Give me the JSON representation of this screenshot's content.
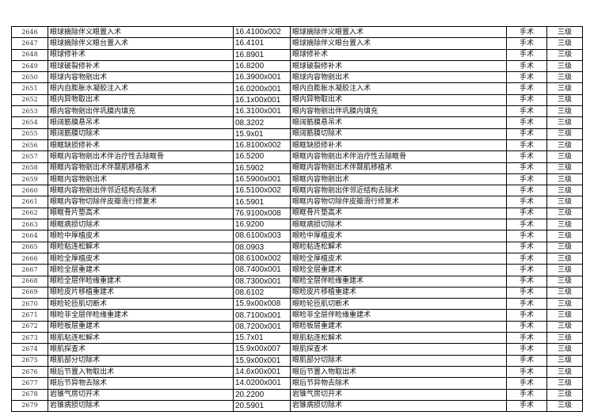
{
  "rows": [
    [
      "2646",
      "眼球摘除伴义眼置入术",
      "16.4100x002",
      "眼球摘除伴义眼置入术",
      "手术",
      "三级"
    ],
    [
      "2647",
      "眼球摘除伴义眼台置入术",
      "16.4101",
      "眼球摘除伴义眼台置入术",
      "手术",
      "三级"
    ],
    [
      "2648",
      "眼球修补术",
      "16.8901",
      "眼球修补术",
      "手术",
      "三级"
    ],
    [
      "2649",
      "眼球破裂修补术",
      "16.8200",
      "眼球破裂修补术",
      "手术",
      "三级"
    ],
    [
      "2650",
      "眼球内容物剜出术",
      "16.3900x001",
      "眼球内容物剜出术",
      "手术",
      "三级"
    ],
    [
      "2651",
      "眼内自膨胀水凝胶注入术",
      "16.0200x001",
      "眼内自膨胀水凝胶注入术",
      "手术",
      "三级"
    ],
    [
      "2652",
      "眼内异物取出术",
      "16.1x00x001",
      "眼内异物取出术",
      "手术",
      "三级"
    ],
    [
      "2653",
      "眼内容物剜出伴巩膜内填充",
      "16.3100x001",
      "眼内容物剜出伴巩膜内填充",
      "手术",
      "三级"
    ],
    [
      "2654",
      "眼阔筋膜悬吊术",
      "08.3202",
      "眼阔筋膜悬吊术",
      "手术",
      "三级"
    ],
    [
      "2655",
      "眼阔筋膜切除术",
      "15.9x01",
      "眼阔筋膜切除术",
      "手术",
      "三级"
    ],
    [
      "2656",
      "眼眶缺损修补术",
      "16.8100x002",
      "眼眶缺损修补术",
      "手术",
      "三级"
    ],
    [
      "2657",
      "眼眶内容物剜出术伴治疗性去除眶骨",
      "16.5200",
      "眼眶内容物剜出术伴治疗性去除眶骨",
      "手术",
      "三级"
    ],
    [
      "2658",
      "眼眶内容物剜出术伴颞肌移植术",
      "16.5902",
      "眼眶内容物剜出术伴颞肌移植术",
      "手术",
      "三级"
    ],
    [
      "2659",
      "眼眶内容物剜出术",
      "16.5900x001",
      "眼眶内容物剜出术",
      "手术",
      "三级"
    ],
    [
      "2660",
      "眼眶内容物剜出伴邻近结构去除术",
      "16.5100x002",
      "眼眶内容物剜出伴邻近结构去除术",
      "手术",
      "三级"
    ],
    [
      "2661",
      "眼眶内容物切除伴皮瓣滑行修复术",
      "16.5901",
      "眼眶内容物切除伴皮瓣滑行修复术",
      "手术",
      "三级"
    ],
    [
      "2662",
      "眼眶骨片垫高术",
      "76.9100x008",
      "眼眶骨片垫高术",
      "手术",
      "三级"
    ],
    [
      "2663",
      "眼眶病损切除术",
      "16.9200",
      "眼眶病损切除术",
      "手术",
      "三级"
    ],
    [
      "2664",
      "眼睑中厚植皮术",
      "08.6100x003",
      "眼睑中厚植皮术",
      "手术",
      "三级"
    ],
    [
      "2665",
      "眼睑粘连松解术",
      "08.0903",
      "眼睑粘连松解术",
      "手术",
      "三级"
    ],
    [
      "2666",
      "眼睑全厚植皮术",
      "08.6100x002",
      "眼睑全厚植皮术",
      "手术",
      "三级"
    ],
    [
      "2667",
      "眼睑全层重建术",
      "08.7400x001",
      "眼睑全层重建术",
      "手术",
      "三级"
    ],
    [
      "2668",
      "眼睑全层伴睑缘重建术",
      "08.7300x001",
      "眼睑全层伴睑缘重建术",
      "手术",
      "三级"
    ],
    [
      "2669",
      "眼睑皮片移植重建术",
      "08.6102",
      "眼睑皮片移植重建术",
      "手术",
      "三级"
    ],
    [
      "2670",
      "眼睑轮匝肌切断术",
      "15.9x00x008",
      "眼睑轮匝肌切断术",
      "手术",
      "三级"
    ],
    [
      "2671",
      "眼睑非全层伴睑缘重建术",
      "08.7100x001",
      "眼睑非全层伴睑缘重建术",
      "手术",
      "三级"
    ],
    [
      "2672",
      "眼睑板层重建术",
      "08.7200x001",
      "眼睑板层重建术",
      "手术",
      "三级"
    ],
    [
      "2673",
      "眼肌粘连松解术",
      "15.7x01",
      "眼肌粘连松解术",
      "手术",
      "三级"
    ],
    [
      "2674",
      "眼肌探查术",
      "15.9x00x007",
      "眼肌探查术",
      "手术",
      "三级"
    ],
    [
      "2675",
      "眼肌部分切除术",
      "15.9x00x001",
      "眼肌部分切除术",
      "手术",
      "三级"
    ],
    [
      "2676",
      "眼后节置入物取出术",
      "14.6x00x001",
      "眼后节置入物取出术",
      "手术",
      "三级"
    ],
    [
      "2677",
      "眼后节异物去除术",
      "14.0200x001",
      "眼后节异物去除术",
      "手术",
      "三级"
    ],
    [
      "2678",
      "岩锥气房切开术",
      "20.2200",
      "岩锥气房切开术",
      "手术",
      "三级"
    ],
    [
      "2679",
      "岩锥病损切除术",
      "20.5901",
      "岩锥病损切除术",
      "手术",
      "三级"
    ]
  ]
}
